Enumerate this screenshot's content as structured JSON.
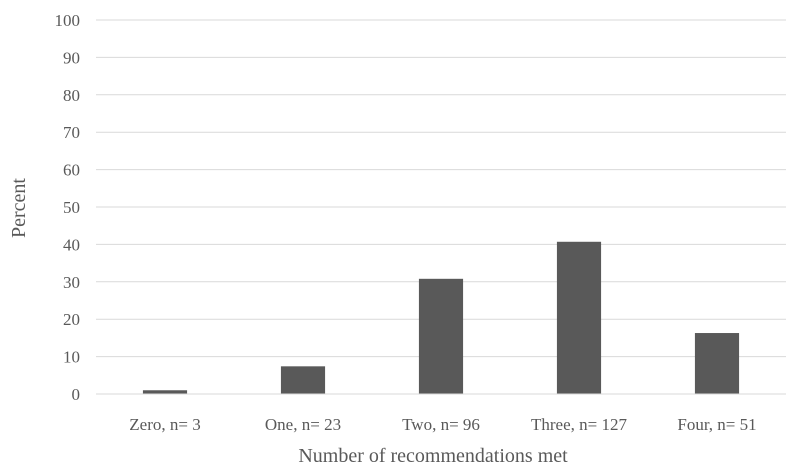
{
  "chart_data": {
    "type": "bar",
    "title": "",
    "xlabel": "Number of recommendations met",
    "ylabel": "Percent",
    "ylim": [
      0,
      100
    ],
    "yticks": [
      0,
      10,
      20,
      30,
      40,
      50,
      60,
      70,
      80,
      90,
      100
    ],
    "grid": true,
    "legend": "none",
    "categories": [
      "Zero, n= 3",
      "One, n= 23",
      "Two, n= 96",
      "Three, n= 127",
      "Four, n= 51"
    ],
    "series": [
      {
        "values": [
          1.0,
          7.4,
          30.8,
          40.7,
          16.3
        ]
      }
    ],
    "colors": {
      "bar": "#595959",
      "grid": "#d9d9d9",
      "axis": "#d9d9d9",
      "text": "#595959"
    }
  }
}
